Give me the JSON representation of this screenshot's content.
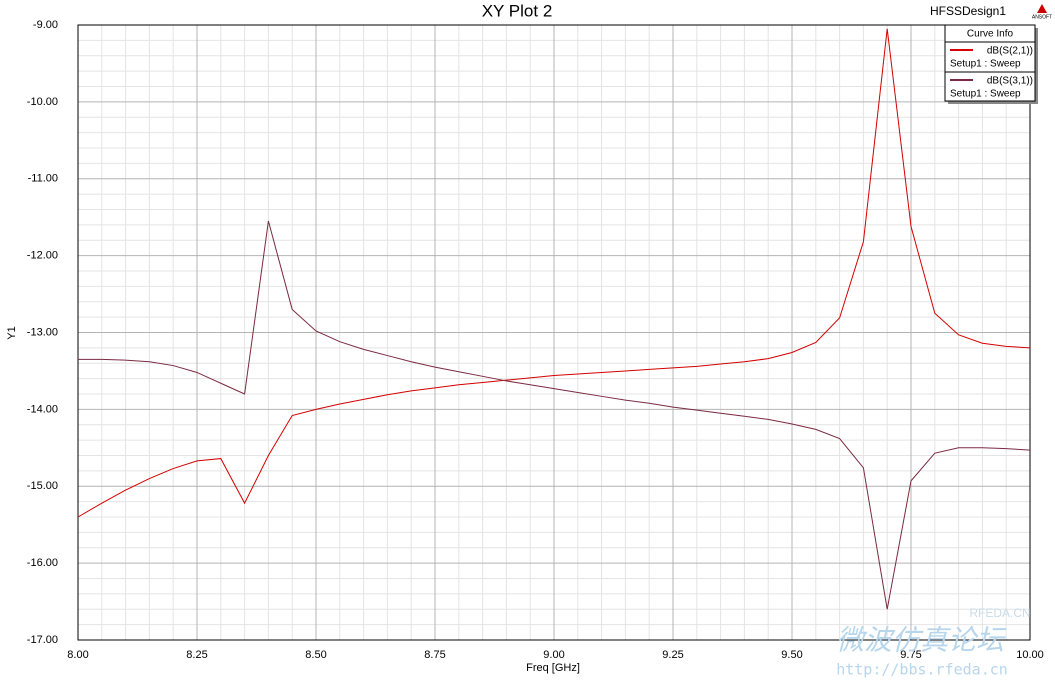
{
  "chart_data": {
    "type": "line",
    "title": "XY Plot 2",
    "design": "HFSSDesign1",
    "logo": "ANSOFT",
    "x_label": "Freq [GHz]",
    "y_label": "Y1",
    "legend_title": "Curve Info",
    "legend_position": "upper right",
    "grid": true,
    "x": [
      8.0,
      8.05,
      8.1,
      8.15,
      8.2,
      8.25,
      8.3,
      8.35,
      8.4,
      8.45,
      8.5,
      8.55,
      8.6,
      8.65,
      8.7,
      8.75,
      8.8,
      8.85,
      8.9,
      8.95,
      9.0,
      9.05,
      9.1,
      9.15,
      9.2,
      9.25,
      9.3,
      9.35,
      9.4,
      9.45,
      9.5,
      9.55,
      9.6,
      9.65,
      9.7,
      9.75,
      9.8,
      9.85,
      9.9,
      9.95,
      10.0
    ],
    "series": [
      {
        "name": "dB(S(2,1))",
        "setup": "Setup1 : Sweep",
        "color": "#d40000",
        "values": [
          -15.4,
          -15.22,
          -15.05,
          -14.9,
          -14.77,
          -14.67,
          -14.64,
          -15.22,
          -14.6,
          -14.08,
          -14.0,
          -13.93,
          -13.87,
          -13.81,
          -13.76,
          -13.72,
          -13.68,
          -13.65,
          -13.62,
          -13.59,
          -13.56,
          -13.54,
          -13.52,
          -13.5,
          -13.48,
          -13.46,
          -13.44,
          -13.41,
          -13.38,
          -13.34,
          -13.26,
          -13.13,
          -12.81,
          -11.82,
          -9.05,
          -11.62,
          -12.75,
          -13.03,
          -13.14,
          -13.18,
          -13.2
        ]
      },
      {
        "name": "dB(S(3,1))",
        "setup": "Setup1 : Sweep",
        "color": "#7a2a40",
        "values": [
          -13.35,
          -13.35,
          -13.36,
          -13.38,
          -13.43,
          -13.52,
          -13.66,
          -13.8,
          -11.55,
          -12.7,
          -12.98,
          -13.12,
          -13.22,
          -13.3,
          -13.38,
          -13.45,
          -13.51,
          -13.57,
          -13.63,
          -13.68,
          -13.73,
          -13.78,
          -13.83,
          -13.88,
          -13.92,
          -13.97,
          -14.01,
          -14.05,
          -14.09,
          -14.13,
          -14.19,
          -14.26,
          -14.38,
          -14.76,
          -16.6,
          -14.93,
          -14.57,
          -14.5,
          -14.5,
          -14.51,
          -14.53
        ]
      }
    ],
    "xlim": [
      8,
      10
    ],
    "xticks": [
      {
        "value": 8,
        "label": "8.00"
      },
      {
        "value": 8.25,
        "label": "8.25"
      },
      {
        "value": 8.5,
        "label": "8.50"
      },
      {
        "value": 8.75,
        "label": "8.75"
      },
      {
        "value": 9,
        "label": "9.00"
      },
      {
        "value": 9.25,
        "label": "9.25"
      },
      {
        "value": 9.5,
        "label": "9.50"
      },
      {
        "value": 9.75,
        "label": "9.75"
      },
      {
        "value": 10,
        "label": "10.00"
      }
    ],
    "ylim": [
      -17,
      -9
    ],
    "yticks": [
      {
        "value": -17,
        "label": "-17.00"
      },
      {
        "value": -16,
        "label": "-16.00"
      },
      {
        "value": -15,
        "label": "-15.00"
      },
      {
        "value": -14,
        "label": "-14.00"
      },
      {
        "value": -13,
        "label": "-13.00"
      },
      {
        "value": -12,
        "label": "-12.00"
      },
      {
        "value": -11,
        "label": "-11.00"
      },
      {
        "value": -10,
        "label": "-10.00"
      },
      {
        "value": -9,
        "label": "-9.00"
      }
    ]
  },
  "watermark": {
    "site": "RFEDA.CN",
    "forum": "微波仿真论坛",
    "url": "http://bbs.rfeda.cn"
  }
}
